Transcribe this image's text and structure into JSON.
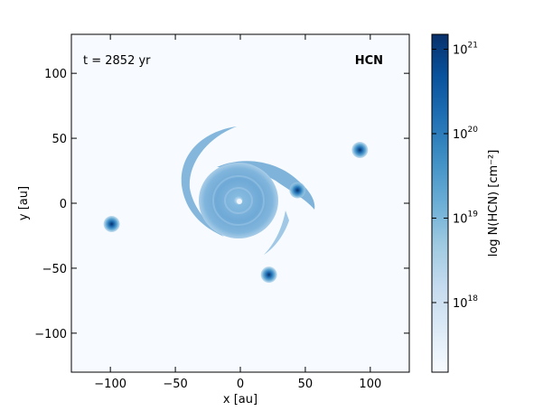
{
  "chart_data": {
    "type": "heatmap",
    "xlabel": "x [au]",
    "ylabel": "y [au]",
    "xlim": [
      -130,
      130
    ],
    "ylim": [
      -130,
      130
    ],
    "xticks": [
      -100,
      -50,
      0,
      50,
      100
    ],
    "xtick_labels": [
      "−100",
      "−50",
      "0",
      "50",
      "100"
    ],
    "yticks": [
      -100,
      -50,
      0,
      50,
      100
    ],
    "ytick_labels": [
      "−100",
      "−50",
      "0",
      "50",
      "100"
    ],
    "annotations": {
      "time": "t = 2852 yr",
      "species": "HCN"
    },
    "colorbar": {
      "label": "log N(HCN) [cm⁻²]",
      "scale": "log",
      "range": [
        1.5e+17,
        1.5e+21
      ],
      "ticks": [
        1e+18,
        1e+19,
        1e+20,
        1e+21
      ],
      "tick_labels": [
        {
          "base": "10",
          "exp": "18"
        },
        {
          "base": "10",
          "exp": "19"
        },
        {
          "base": "10",
          "exp": "20"
        },
        {
          "base": "10",
          "exp": "21"
        }
      ],
      "colormap": [
        "#f7fbff",
        "#deebf7",
        "#c6dbef",
        "#9ecae1",
        "#6baed6",
        "#4292c6",
        "#2171b5",
        "#08519c",
        "#08306b"
      ]
    },
    "features": [
      {
        "name": "central disk",
        "x": 0,
        "y": 2,
        "radius": 30
      },
      {
        "name": "clump",
        "x": 44,
        "y": 10
      },
      {
        "name": "clump",
        "x": 92,
        "y": 41
      },
      {
        "name": "clump",
        "x": -99,
        "y": -16
      },
      {
        "name": "clump",
        "x": 22,
        "y": -55
      }
    ],
    "colors": {
      "background": "#f7fbff",
      "disk": "#7fb3da",
      "core": "#08306b"
    }
  }
}
